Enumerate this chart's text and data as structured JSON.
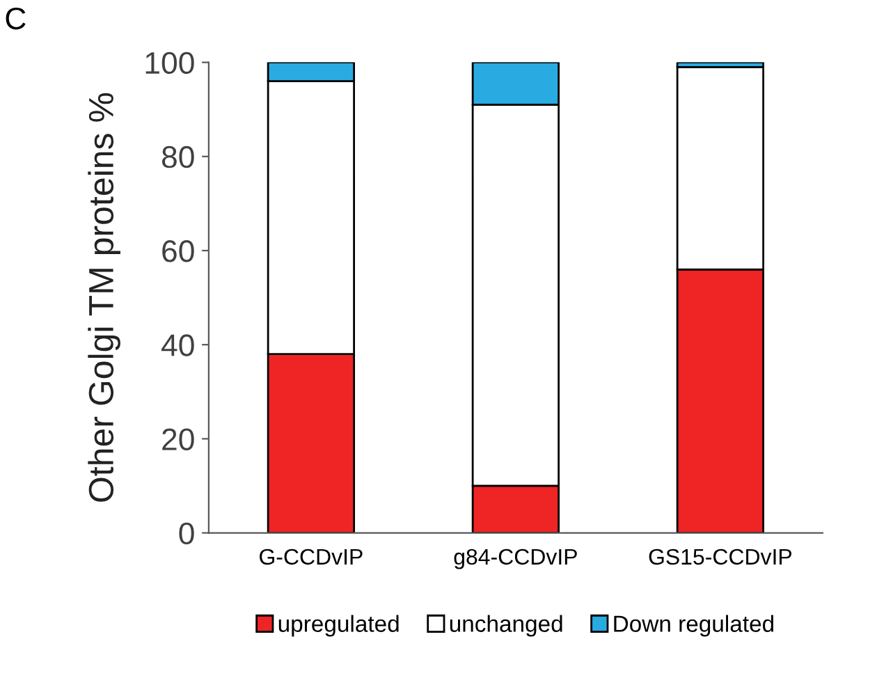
{
  "chart_data": {
    "type": "bar",
    "stacked": true,
    "ylabel": "Other Golgi TM proteins %",
    "categories": [
      "G-CCDvIP",
      "g84-CCDvIP",
      "GS15-CCDvIP"
    ],
    "series": [
      {
        "name": "upregulated",
        "color": "#ee2524",
        "values": [
          38,
          10,
          56
        ]
      },
      {
        "name": "unchanged",
        "color": "#ffffff",
        "values": [
          58,
          81,
          43
        ]
      },
      {
        "name": "Down regulated",
        "color": "#29abe2",
        "values": [
          4,
          9,
          1
        ]
      }
    ],
    "ylim": [
      0,
      100
    ],
    "yticks": [
      0,
      20,
      40,
      60,
      80,
      100
    ],
    "grid": false,
    "legend": "bottom",
    "annotations": [
      "C"
    ]
  }
}
